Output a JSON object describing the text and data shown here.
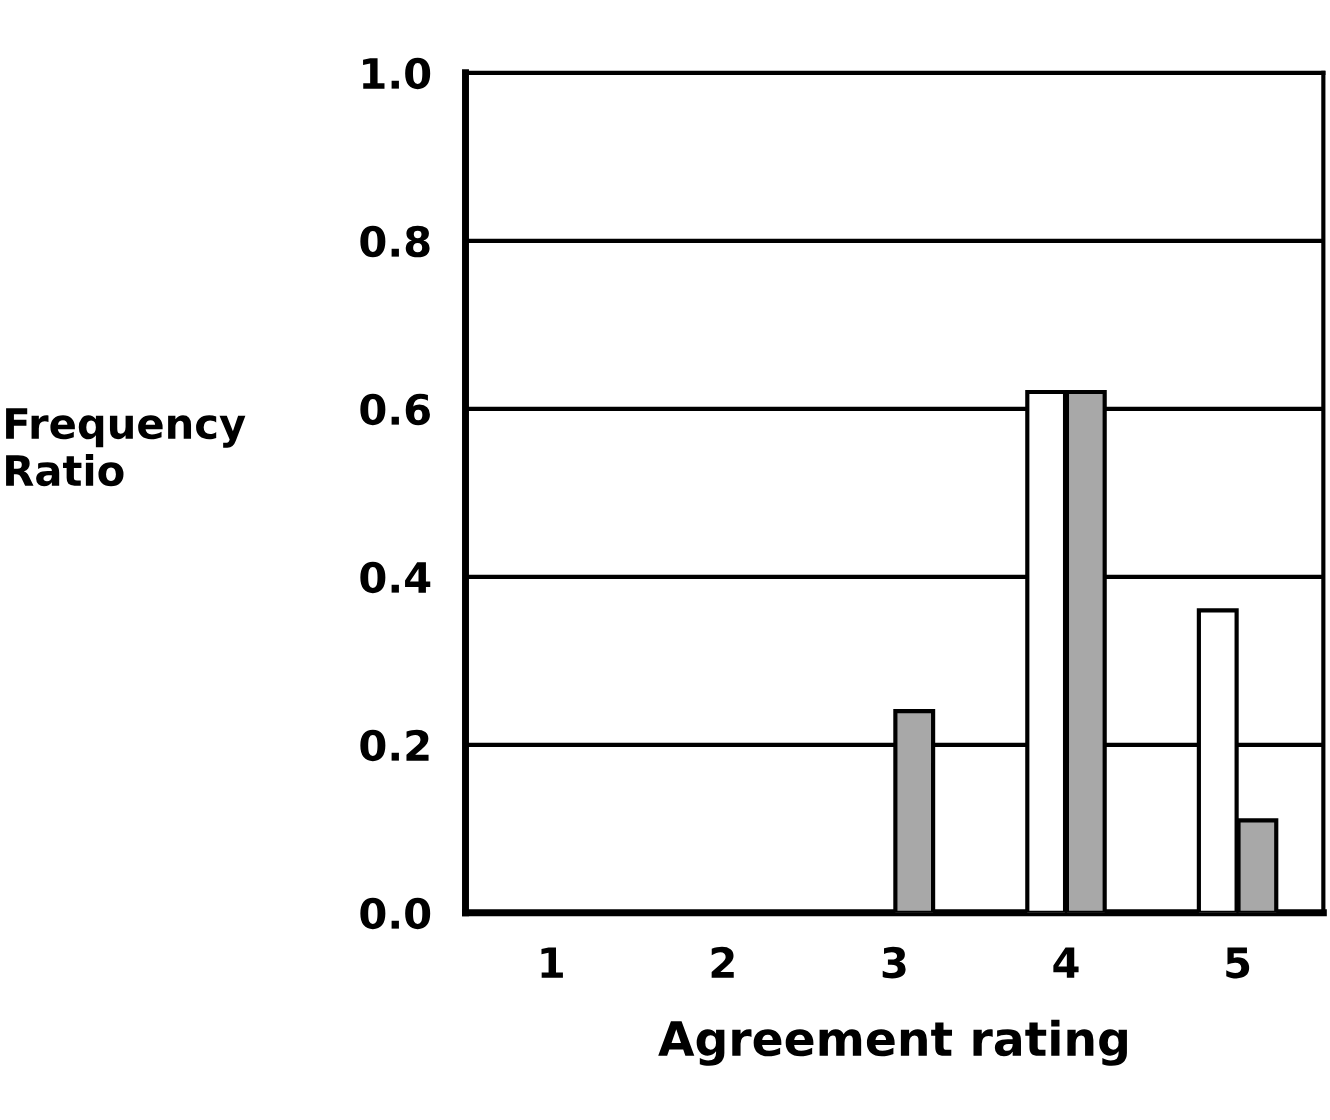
{
  "chart_data": {
    "type": "bar",
    "xlabel": "Agreement rating",
    "ylabel": "Frequency\nRatio",
    "categories": [
      "1",
      "2",
      "3",
      "4",
      "5"
    ],
    "series": [
      {
        "color": "#ffffff",
        "values": [
          0,
          0,
          0,
          0.62,
          0.36
        ]
      },
      {
        "color": "#a8a8a8",
        "values": [
          0,
          0,
          0.24,
          0.62,
          0.11
        ]
      }
    ],
    "ylim": [
      0.0,
      1.0
    ],
    "yticks": [
      {
        "value": 0,
        "label": "0.0"
      },
      0.2,
      0.4,
      0.6,
      0.8,
      {
        "value": 1,
        "label": "1.0"
      }
    ],
    "grid": "y",
    "legend": false
  }
}
